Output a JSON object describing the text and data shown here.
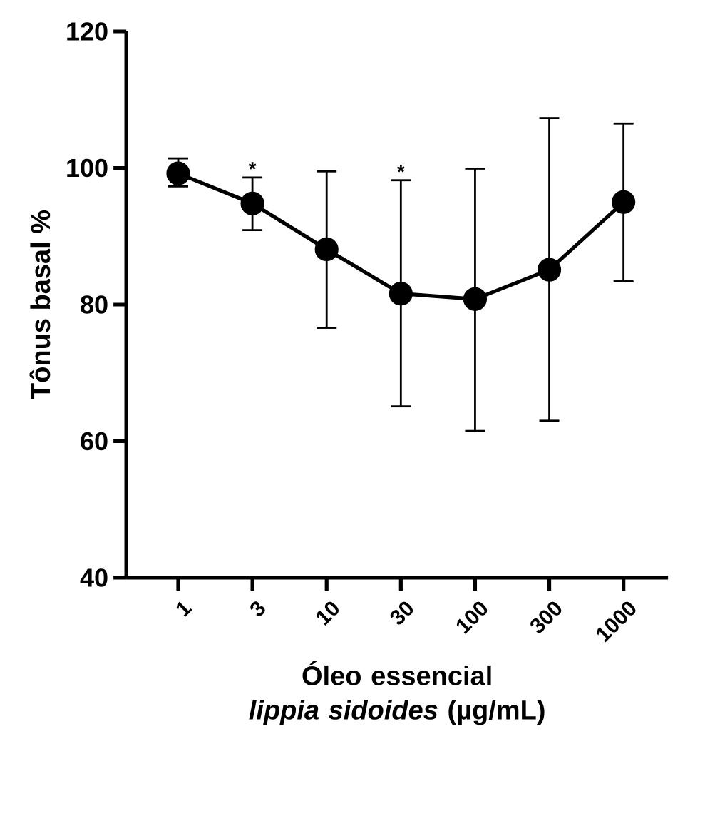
{
  "chart_data": {
    "type": "line",
    "xlabel": "Óleo essencial *lippia sidoides* (µg/mL)",
    "ylabel": "Tônus basal %",
    "categories": [
      "1",
      "3",
      "10",
      "30",
      "100",
      "300",
      "1000"
    ],
    "values": [
      99.2,
      94.8,
      88.1,
      81.6,
      80.8,
      85.1,
      95.0
    ],
    "errors": [
      [
        97.3,
        101.4
      ],
      [
        90.9,
        98.6
      ],
      [
        76.6,
        99.5
      ],
      [
        65.1,
        98.2
      ],
      [
        61.5,
        99.9
      ],
      [
        63.0,
        107.3
      ],
      [
        83.4,
        106.5
      ]
    ],
    "color": "#000000",
    "marker": "circle",
    "line_style": "solid",
    "grid": false,
    "ylim": [
      40,
      120
    ],
    "yticks": [
      40,
      60,
      80,
      100,
      120
    ],
    "annotations": [
      {
        "text": "*",
        "x": "3",
        "y": 98.6
      },
      {
        "text": "*",
        "x": "30",
        "y": 98.2
      }
    ]
  }
}
